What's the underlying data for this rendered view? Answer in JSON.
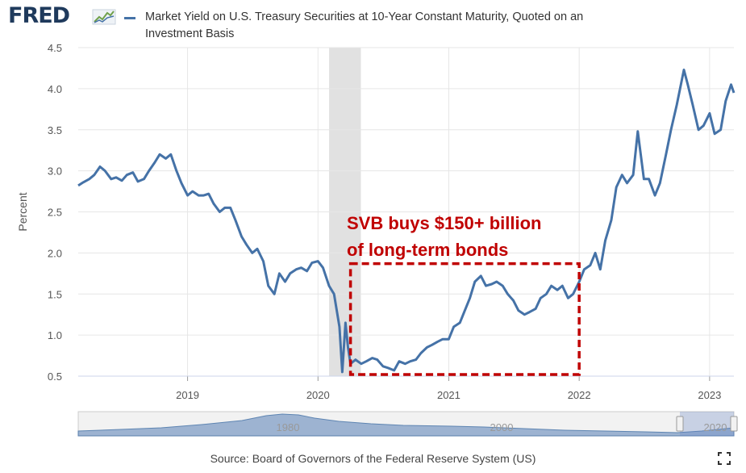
{
  "header": {
    "logo_text": "FRED",
    "logo_icon": "line-chart-icon",
    "legend_text": "Market Yield on U.S. Treasury Securities at 10-Year Constant Maturity, Quoted on an Investment Basis",
    "series_color": "#4572a7"
  },
  "chart_data": {
    "type": "line",
    "ylabel": "Percent",
    "ylim": [
      0.5,
      4.5
    ],
    "y_ticks": [
      "0.5",
      "1.0",
      "1.5",
      "2.0",
      "2.5",
      "3.0",
      "3.5",
      "4.0",
      "4.5"
    ],
    "x_ticks": [
      "2019",
      "2020",
      "2021",
      "2022",
      "2023"
    ],
    "xlim": [
      "2018-03-01",
      "2023-03-10"
    ],
    "grid": true,
    "recession_shading": [
      "2020-02-01",
      "2020-04-30"
    ],
    "series": [
      {
        "name": "Market Yield on U.S. Treasury Securities at 10-Year Constant Maturity, Quoted on an Investment Basis",
        "x": [
          "2018-03-01",
          "2018-03-15",
          "2018-04-01",
          "2018-04-15",
          "2018-05-01",
          "2018-05-15",
          "2018-06-01",
          "2018-06-15",
          "2018-07-01",
          "2018-07-15",
          "2018-08-01",
          "2018-08-15",
          "2018-09-01",
          "2018-09-15",
          "2018-10-01",
          "2018-10-15",
          "2018-11-01",
          "2018-11-15",
          "2018-12-01",
          "2018-12-15",
          "2019-01-01",
          "2019-01-15",
          "2019-02-01",
          "2019-02-15",
          "2019-03-01",
          "2019-03-15",
          "2019-04-01",
          "2019-04-15",
          "2019-05-01",
          "2019-05-15",
          "2019-06-01",
          "2019-06-15",
          "2019-07-01",
          "2019-07-15",
          "2019-08-01",
          "2019-08-15",
          "2019-09-01",
          "2019-09-15",
          "2019-10-01",
          "2019-10-15",
          "2019-11-01",
          "2019-11-15",
          "2019-12-01",
          "2019-12-15",
          "2020-01-01",
          "2020-01-15",
          "2020-02-01",
          "2020-02-15",
          "2020-03-01",
          "2020-03-09",
          "2020-03-18",
          "2020-03-25",
          "2020-04-01",
          "2020-04-15",
          "2020-05-01",
          "2020-05-15",
          "2020-06-01",
          "2020-06-15",
          "2020-07-01",
          "2020-07-15",
          "2020-08-01",
          "2020-08-15",
          "2020-09-01",
          "2020-09-15",
          "2020-10-01",
          "2020-10-15",
          "2020-11-01",
          "2020-11-15",
          "2020-12-01",
          "2020-12-15",
          "2021-01-01",
          "2021-01-15",
          "2021-02-01",
          "2021-02-15",
          "2021-03-01",
          "2021-03-15",
          "2021-04-01",
          "2021-04-15",
          "2021-05-01",
          "2021-05-15",
          "2021-06-01",
          "2021-06-15",
          "2021-07-01",
          "2021-07-15",
          "2021-08-01",
          "2021-08-15",
          "2021-09-01",
          "2021-09-15",
          "2021-10-01",
          "2021-10-15",
          "2021-11-01",
          "2021-11-15",
          "2021-12-01",
          "2021-12-15",
          "2022-01-01",
          "2022-01-15",
          "2022-02-01",
          "2022-02-15",
          "2022-03-01",
          "2022-03-15",
          "2022-04-01",
          "2022-04-15",
          "2022-05-01",
          "2022-05-15",
          "2022-06-01",
          "2022-06-14",
          "2022-07-01",
          "2022-07-15",
          "2022-08-01",
          "2022-08-15",
          "2022-09-01",
          "2022-09-15",
          "2022-10-01",
          "2022-10-21",
          "2022-11-01",
          "2022-11-15",
          "2022-12-01",
          "2022-12-15",
          "2023-01-01",
          "2023-01-15",
          "2023-02-01",
          "2023-02-15",
          "2023-03-02",
          "2023-03-10"
        ],
        "y": [
          2.82,
          2.86,
          2.9,
          2.95,
          3.05,
          3.0,
          2.9,
          2.92,
          2.88,
          2.95,
          2.98,
          2.87,
          2.9,
          3.0,
          3.1,
          3.2,
          3.15,
          3.2,
          3.0,
          2.85,
          2.7,
          2.75,
          2.7,
          2.7,
          2.72,
          2.6,
          2.5,
          2.55,
          2.55,
          2.4,
          2.2,
          2.1,
          2.0,
          2.05,
          1.9,
          1.6,
          1.5,
          1.75,
          1.65,
          1.75,
          1.8,
          1.82,
          1.78,
          1.88,
          1.9,
          1.82,
          1.6,
          1.5,
          1.1,
          0.55,
          1.15,
          0.85,
          0.65,
          0.7,
          0.65,
          0.68,
          0.72,
          0.7,
          0.62,
          0.6,
          0.57,
          0.68,
          0.65,
          0.68,
          0.7,
          0.78,
          0.85,
          0.88,
          0.92,
          0.95,
          0.95,
          1.1,
          1.15,
          1.3,
          1.45,
          1.65,
          1.72,
          1.6,
          1.62,
          1.65,
          1.6,
          1.5,
          1.42,
          1.3,
          1.25,
          1.28,
          1.32,
          1.45,
          1.5,
          1.6,
          1.55,
          1.6,
          1.45,
          1.5,
          1.65,
          1.8,
          1.85,
          2.0,
          1.8,
          2.15,
          2.4,
          2.8,
          2.95,
          2.85,
          2.95,
          3.48,
          2.9,
          2.9,
          2.7,
          2.85,
          3.2,
          3.5,
          3.8,
          4.23,
          4.05,
          3.8,
          3.5,
          3.55,
          3.7,
          3.45,
          3.5,
          3.85,
          4.05,
          3.95
        ]
      }
    ]
  },
  "annotation": {
    "text_line1": "SVB buys $150+ billion",
    "text_line2": "of long-term bonds",
    "color": "#c00000",
    "x_range": [
      "2020-04-01",
      "2022-01-01"
    ],
    "y_range": [
      0.52,
      1.87
    ]
  },
  "navigator": {
    "labels": [
      "1980",
      "2000",
      "2020"
    ]
  },
  "footer": {
    "source": "Source: Board of Governors of the Federal Reserve System (US)",
    "fullscreen_icon": "fullscreen-icon"
  }
}
